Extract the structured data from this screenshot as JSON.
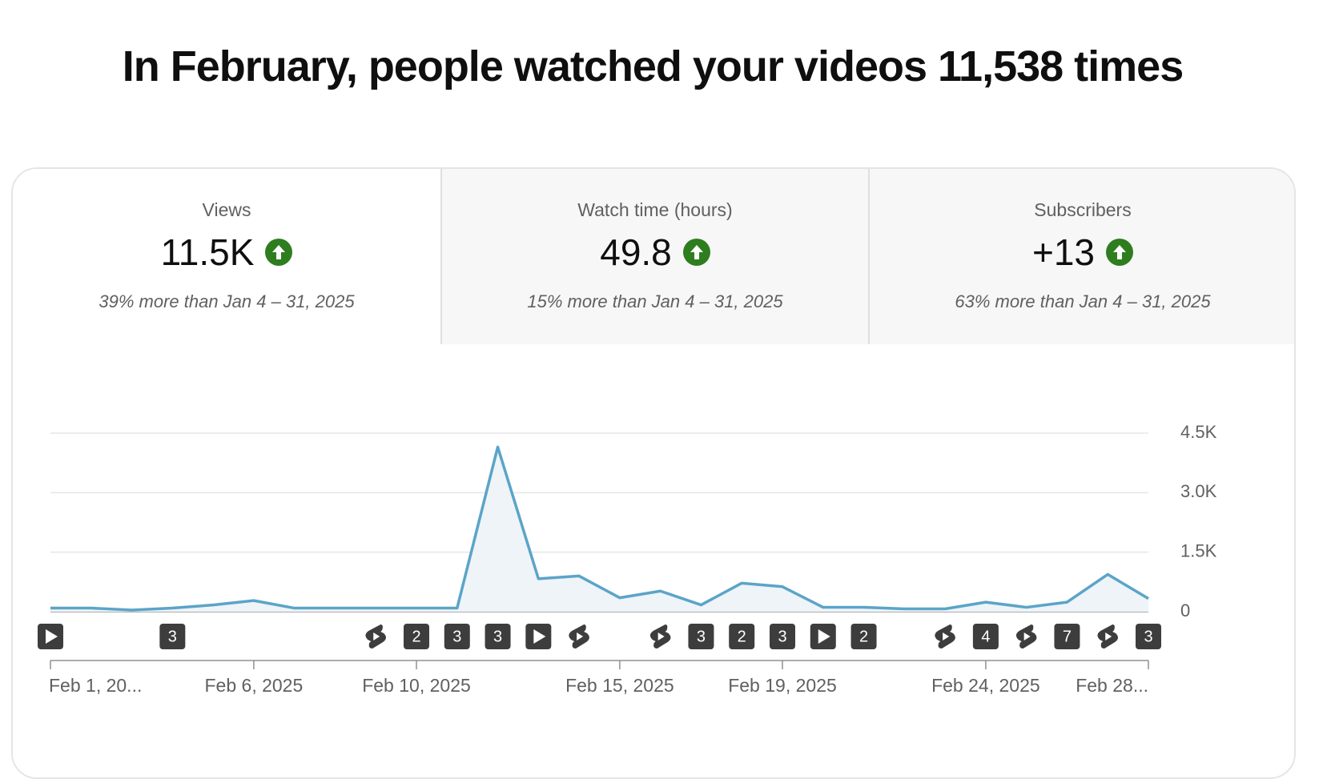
{
  "header": {
    "title": "In February, people watched your videos 11,538 times"
  },
  "tabs": [
    {
      "label": "Views",
      "value": "11.5K",
      "comparison": "39% more than Jan 4 – 31, 2025"
    },
    {
      "label": "Watch time (hours)",
      "value": "49.8",
      "comparison": "15% more than Jan 4 – 31, 2025"
    },
    {
      "label": "Subscribers",
      "value": "+13",
      "comparison": "63% more than Jan 4 – 31, 2025"
    }
  ],
  "chart_data": {
    "type": "line",
    "categories": [
      "Feb 1, 20...",
      null,
      null,
      null,
      null,
      "Feb 6, 2025",
      null,
      null,
      null,
      "Feb 10, 2025",
      null,
      null,
      null,
      null,
      "Feb 15, 2025",
      null,
      null,
      null,
      "Feb 19, 2025",
      null,
      null,
      null,
      null,
      "Feb 24, 2025",
      null,
      null,
      null,
      "Feb 28..."
    ],
    "values": [
      90,
      90,
      40,
      90,
      170,
      280,
      90,
      90,
      90,
      90,
      90,
      4150,
      830,
      900,
      350,
      520,
      170,
      720,
      630,
      110,
      110,
      70,
      70,
      240,
      110,
      240,
      940,
      330
    ],
    "color": "#5ba4c8",
    "fill": "#eef4f8",
    "ylim": [
      0,
      4500
    ],
    "yticks": [
      0,
      {
        "value": 1500,
        "label": "1.5K"
      },
      {
        "value": 3000,
        "label": "3.0K"
      },
      {
        "value": 4500,
        "label": "4.5K"
      }
    ],
    "grid": true,
    "markers": [
      "play",
      null,
      null,
      3,
      null,
      null,
      null,
      null,
      "shorts",
      2,
      3,
      3,
      "play",
      "shorts",
      null,
      "shorts",
      3,
      2,
      3,
      "play",
      2,
      null,
      "shorts",
      4,
      "shorts",
      7,
      "shorts",
      3
    ]
  }
}
